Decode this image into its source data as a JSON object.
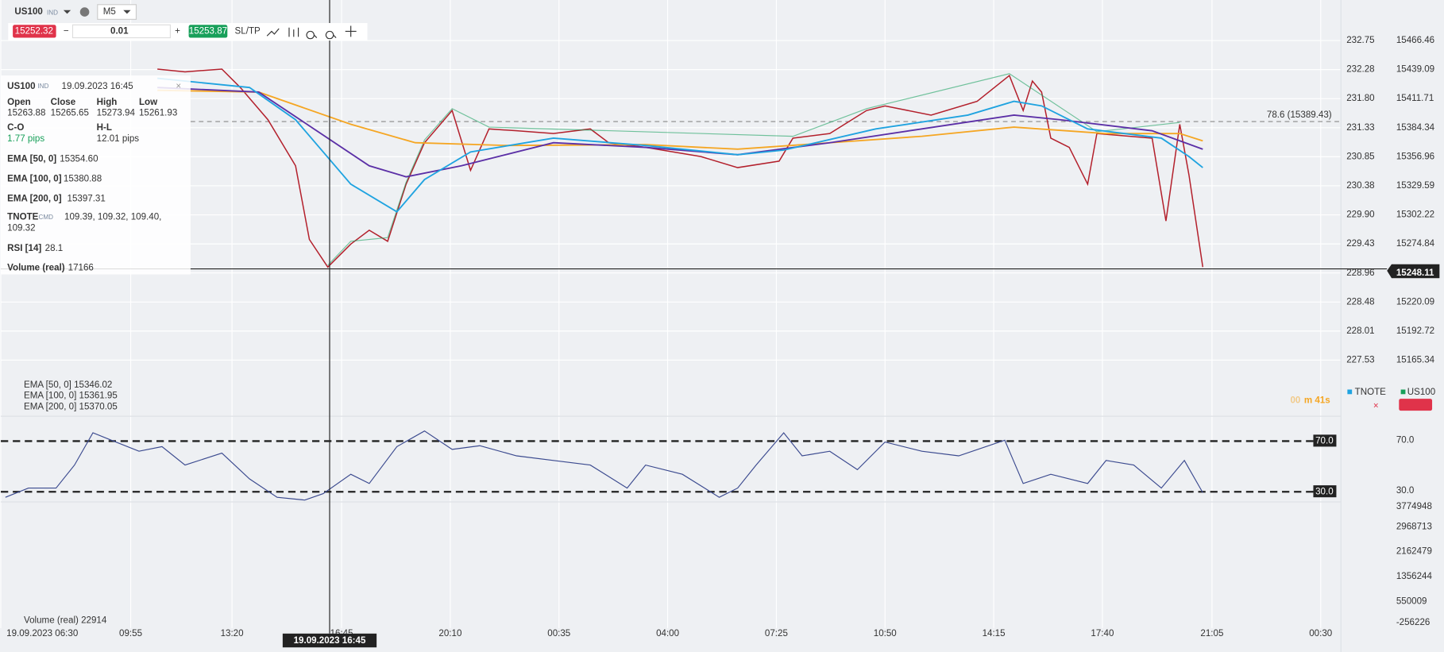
{
  "toolbar": {
    "symbol": "US100",
    "symbol_tag": "IND",
    "timeframe": "M5",
    "sell_price": "15252.32",
    "volume": "0.01",
    "buy_price": "15253.87",
    "sltp": "SL/TP"
  },
  "info_panel": {
    "symbol": "US100",
    "symbol_tag": "IND",
    "datetime": "19.09.2023 16:45",
    "ohlc_labels": [
      "Open",
      "Close",
      "High",
      "Low"
    ],
    "ohlc_values": [
      "15263.88",
      "15265.65",
      "15273.94",
      "15261.93"
    ],
    "co_label": "C-O",
    "co_value": "1.77 pips",
    "hl_label": "H-L",
    "hl_value": "12.01 pips",
    "rows": [
      {
        "label": "EMA [50, 0]",
        "value": "15354.60"
      },
      {
        "label": "EMA [100, 0]",
        "value": "15380.88"
      },
      {
        "label": "EMA [200, 0]",
        "value": "15397.31"
      }
    ],
    "tnote_label": "TNOTE",
    "tnote_tag": "CMD",
    "tnote_value_1": "109.39, 109.32, 109.40,",
    "tnote_value_2": "109.32",
    "rsi_label": "RSI [14]",
    "rsi_value": "28.1",
    "volume_label": "Volume (real)",
    "volume_value": "17166"
  },
  "price_axis_left": [
    "232.75",
    "232.28",
    "231.80",
    "231.33",
    "230.85",
    "230.38",
    "229.90",
    "229.43",
    "228.96",
    "228.48",
    "228.01",
    "227.53"
  ],
  "price_axis_right": [
    "15466.46",
    "15439.09",
    "15411.71",
    "15384.34",
    "15356.96",
    "15329.59",
    "15302.22",
    "15274.84",
    "15248.11",
    "15220.09",
    "15192.72",
    "15165.34"
  ],
  "fib_label": "78.6 (15389.43)",
  "indicator_legends": [
    "EMA [50, 0] 15346.02",
    "EMA [100, 0] 15361.95",
    "EMA [200, 0] 15370.05"
  ],
  "timer_minutes": "00",
  "timer_rest": "m 41s",
  "legend_tabs": [
    "TNOTE",
    "US100"
  ],
  "rsi_axis": [
    "70.0",
    "30.0"
  ],
  "volume_axis": [
    "3774948",
    "2968713",
    "2162479",
    "1356244",
    "550009",
    "-256226"
  ],
  "volume_legend": "Volume (real) 22914",
  "time_axis": [
    "19.09.2023 06:30",
    "09:55",
    "13:20",
    "16:45",
    "20:10",
    "00:35",
    "04:00",
    "07:25",
    "10:50",
    "14:15",
    "17:40",
    "21:05",
    "00:30"
  ],
  "crosshair_time": "19.09.2023 16:45"
}
